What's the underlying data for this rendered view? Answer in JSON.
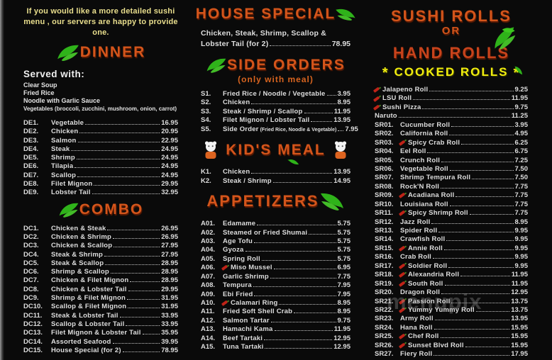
{
  "notice": {
    "line1": "If you would like a more detailed sushi",
    "line2": "menu ,  our servers are happy to provide one."
  },
  "watermark": {
    "text": "menupix"
  },
  "colors": {
    "background": "#0a0a0a",
    "header_orange": "#d4551b",
    "hand_rolls_red": "#c8431c",
    "cooked_yellow": "#f0ed0e",
    "notice_yellow": "#e9de8d",
    "item_white": "#dedede",
    "subtitle_orange": "#d8641f",
    "pepper_red": "#bf2318",
    "leaf_green": "#2fb31a"
  },
  "sections": {
    "dinner": {
      "title": "DINNER",
      "served_title": "Served with:",
      "served_items": [
        "Clear Soup",
        "Fried Rice",
        "Noodle with Garlic Sauce"
      ],
      "served_items_small": "Vegetables (broccoli, zucchini, mushroom, onion, carrot)",
      "items": [
        {
          "code": "DE1.",
          "name": "Vegetable",
          "price": "16.95"
        },
        {
          "code": "DE2.",
          "name": "Chicken",
          "price": "20.95"
        },
        {
          "code": "DE3.",
          "name": "Salmon",
          "price": "22.95"
        },
        {
          "code": "DE4.",
          "name": "Steak",
          "price": "24.95"
        },
        {
          "code": "DE5.",
          "name": "Shrimp",
          "price": "24.95"
        },
        {
          "code": "DE6.",
          "name": "Tilapia",
          "price": "24.95"
        },
        {
          "code": "DE7.",
          "name": "Scallop",
          "price": "24.95"
        },
        {
          "code": "DE8.",
          "name": "Filet Mignon",
          "price": "29.95"
        },
        {
          "code": "DE9.",
          "name": "Lobster Tail",
          "price": "32.95"
        }
      ]
    },
    "combo": {
      "title": "COMBO",
      "items": [
        {
          "code": "DC1.",
          "name": "Chicken & Steak",
          "price": "26.95"
        },
        {
          "code": "DC2.",
          "name": "Chicken & Shrimp",
          "price": "26.95"
        },
        {
          "code": "DC3.",
          "name": "Chicken & Scallop",
          "price": "27.95"
        },
        {
          "code": "DC4.",
          "name": "Steak & Shrimp",
          "price": "27.95"
        },
        {
          "code": "DC5.",
          "name": "Steak & Scallop",
          "price": "28.95"
        },
        {
          "code": "DC6.",
          "name": "Shrimp & Scallop",
          "price": "28.95"
        },
        {
          "code": "DC7.",
          "name": "Chicken & Filet Mignon",
          "price": "28.95"
        },
        {
          "code": "DC8.",
          "name": "Chicken & Lobster Tail",
          "price": "29.95"
        },
        {
          "code": "DC9.",
          "name": "Shrimp & Filet Mignon",
          "price": "31.95"
        },
        {
          "code": "DC10.",
          "name": "Scallop & Filet Mignon",
          "price": "31.95"
        },
        {
          "code": "DC11.",
          "name": "Steak & Lobster Tail",
          "price": "33.95"
        },
        {
          "code": "DC12.",
          "name": "Scallop & Lobster Tail",
          "price": "33.95"
        },
        {
          "code": "DC13.",
          "name": "Filet Mignon & Lobster Tail",
          "price": "35.95"
        },
        {
          "code": "DC14.",
          "name": "Assorted Seafood",
          "price": "39.95"
        },
        {
          "code": "DC15.",
          "name": "House Special (for 2)",
          "price": "78.95"
        }
      ]
    },
    "house_special": {
      "title": "HOUSE SPECIAL",
      "items": [
        {
          "name": "Chicken, Steak, Shrimp, Scallop &",
          "price": ""
        },
        {
          "name": "Lobster Tail (for 2)",
          "price": "78.95"
        }
      ]
    },
    "side_orders": {
      "title": "SIDE ORDERS",
      "subtitle": "(only with meal)",
      "items": [
        {
          "code": "S1.",
          "name": "Fried Rice / Noodle / Vegetable",
          "price": "3.95"
        },
        {
          "code": "S2.",
          "name": "Chicken",
          "price": "8.95"
        },
        {
          "code": "S3.",
          "name": "Steak / Shrimp / Scallop",
          "price": "11.95"
        },
        {
          "code": "S4.",
          "name": "Filet Mignon / Lobster Tail",
          "price": "13.95"
        },
        {
          "code": "S5.",
          "name": "Side Order",
          "note": "(Fried Rice, Noodle & Vegetable)",
          "price": "7.95"
        }
      ]
    },
    "kids_meal": {
      "title": "KID'S MEAL",
      "items": [
        {
          "code": "K1.",
          "name": "Chicken",
          "price": "13.95"
        },
        {
          "code": "K2.",
          "name": "Steak / Shrimp",
          "price": "14.95"
        }
      ]
    },
    "appetizers": {
      "title": "APPETIZERS",
      "items": [
        {
          "code": "A01.",
          "name": "Edamame",
          "price": "5.75"
        },
        {
          "code": "A02.",
          "name": "Steamed or Fried Shumai",
          "price": "5.75"
        },
        {
          "code": "A03.",
          "name": "Age Tofu",
          "price": "5.75"
        },
        {
          "code": "A04.",
          "name": "Gyoza",
          "price": "5.75"
        },
        {
          "code": "A05.",
          "name": "Spring Roll",
          "price": "5.75"
        },
        {
          "code": "A06.",
          "name": "Miso Mussel",
          "price": "6.95",
          "spicy": true
        },
        {
          "code": "A07.",
          "name": "Garlic Shrimp",
          "price": "7.75"
        },
        {
          "code": "A08.",
          "name": "Tempura",
          "price": "7.95"
        },
        {
          "code": "A09.",
          "name": "Ebi Fried",
          "price": "7.95"
        },
        {
          "code": "A10.",
          "name": "Calamari Ring",
          "price": "8.95",
          "spicy": true
        },
        {
          "code": "A11.",
          "name": "Fried Soft Shell Crab",
          "price": "8.95"
        },
        {
          "code": "A12.",
          "name": "Salmon Tartar",
          "price": "9.75"
        },
        {
          "code": "A13.",
          "name": "Hamachi Kama",
          "price": "11.95"
        },
        {
          "code": "A14.",
          "name": "Beef Tartaki",
          "price": "12.95"
        },
        {
          "code": "A15.",
          "name": "Tuna Tartaki",
          "price": "12.95"
        }
      ]
    },
    "sushi_rolls": {
      "title_line1": "SUSHI ROLLS",
      "title_line2": "OR",
      "title_line3": "HAND ROLLS",
      "cooked_title": "COOKED ROLLS",
      "cooked_star": "*",
      "items": [
        {
          "code": "",
          "name": "Jalapeno Roll",
          "price": "9.25",
          "spicy": true
        },
        {
          "code": "",
          "name": "LSU Roll",
          "price": "11.95",
          "spicy": true
        },
        {
          "code": "",
          "name": "Sushi Pizza",
          "price": "9.75",
          "spicy": true
        },
        {
          "code": "",
          "name": "Naruto",
          "price": "11.25"
        },
        {
          "code": "SR01.",
          "name": "Cucumber Roll",
          "price": "3.95"
        },
        {
          "code": "SR02.",
          "name": "California Roll",
          "price": "4.95"
        },
        {
          "code": "SR03.",
          "name": "Spicy Crab Roll",
          "price": "6.25",
          "spicy": true
        },
        {
          "code": "SR04.",
          "name": "Eel Roll",
          "price": "6.75"
        },
        {
          "code": "SR05.",
          "name": "Crunch Roll",
          "price": "7.25"
        },
        {
          "code": "SR06.",
          "name": "Vegetable Roll",
          "price": "7.50"
        },
        {
          "code": "SR07.",
          "name": "Shrimp Tempura Roll",
          "price": "7.50"
        },
        {
          "code": "SR08.",
          "name": "Rock'N Roll",
          "price": "7.75"
        },
        {
          "code": "SR09.",
          "name": "Acadiana Roll",
          "price": "7.75",
          "spicy": true
        },
        {
          "code": "SR10.",
          "name": "Louisiana Roll",
          "price": "7.75"
        },
        {
          "code": "SR11.",
          "name": "Spicy Shrimp Roll",
          "price": "7.75",
          "spicy": true
        },
        {
          "code": "SR12.",
          "name": "Jazz Roll",
          "price": "8.95"
        },
        {
          "code": "SR13.",
          "name": "Spider Roll",
          "price": "9.95"
        },
        {
          "code": "SR14.",
          "name": "Crawfish Roll",
          "price": "9.95"
        },
        {
          "code": "SR15.",
          "name": "Annie Roll",
          "price": "9.95",
          "spicy": true
        },
        {
          "code": "SR16.",
          "name": "Crab Roll",
          "price": "9.95"
        },
        {
          "code": "SR17.",
          "name": "Soldier Roll",
          "price": "9.95",
          "spicy": true
        },
        {
          "code": "SR18.",
          "name": "Alexandria Roll",
          "price": "11.95",
          "spicy": true
        },
        {
          "code": "SR19.",
          "name": "South Roll",
          "price": "11.95",
          "spicy": true
        },
        {
          "code": "SR20.",
          "name": "Dragon Roll",
          "price": "12.95"
        },
        {
          "code": "SR21.",
          "name": "Passion Roll",
          "price": "13.75",
          "spicy": true
        },
        {
          "code": "SR22.",
          "name": "Yummy Yummy Roll",
          "price": "13.75",
          "spicy": true
        },
        {
          "code": "SR23.",
          "name": "Army Roll",
          "price": "13.95"
        },
        {
          "code": "SR24.",
          "name": "Hana Roll",
          "price": "15.95"
        },
        {
          "code": "SR25.",
          "name": "Chef Roll",
          "price": "15.95",
          "spicy": true
        },
        {
          "code": "SR26.",
          "name": "Sunset Blvd Roll",
          "price": "15.95",
          "spicy": true
        },
        {
          "code": "SR27.",
          "name": "Fiery Roll",
          "price": "17.95"
        }
      ]
    }
  }
}
